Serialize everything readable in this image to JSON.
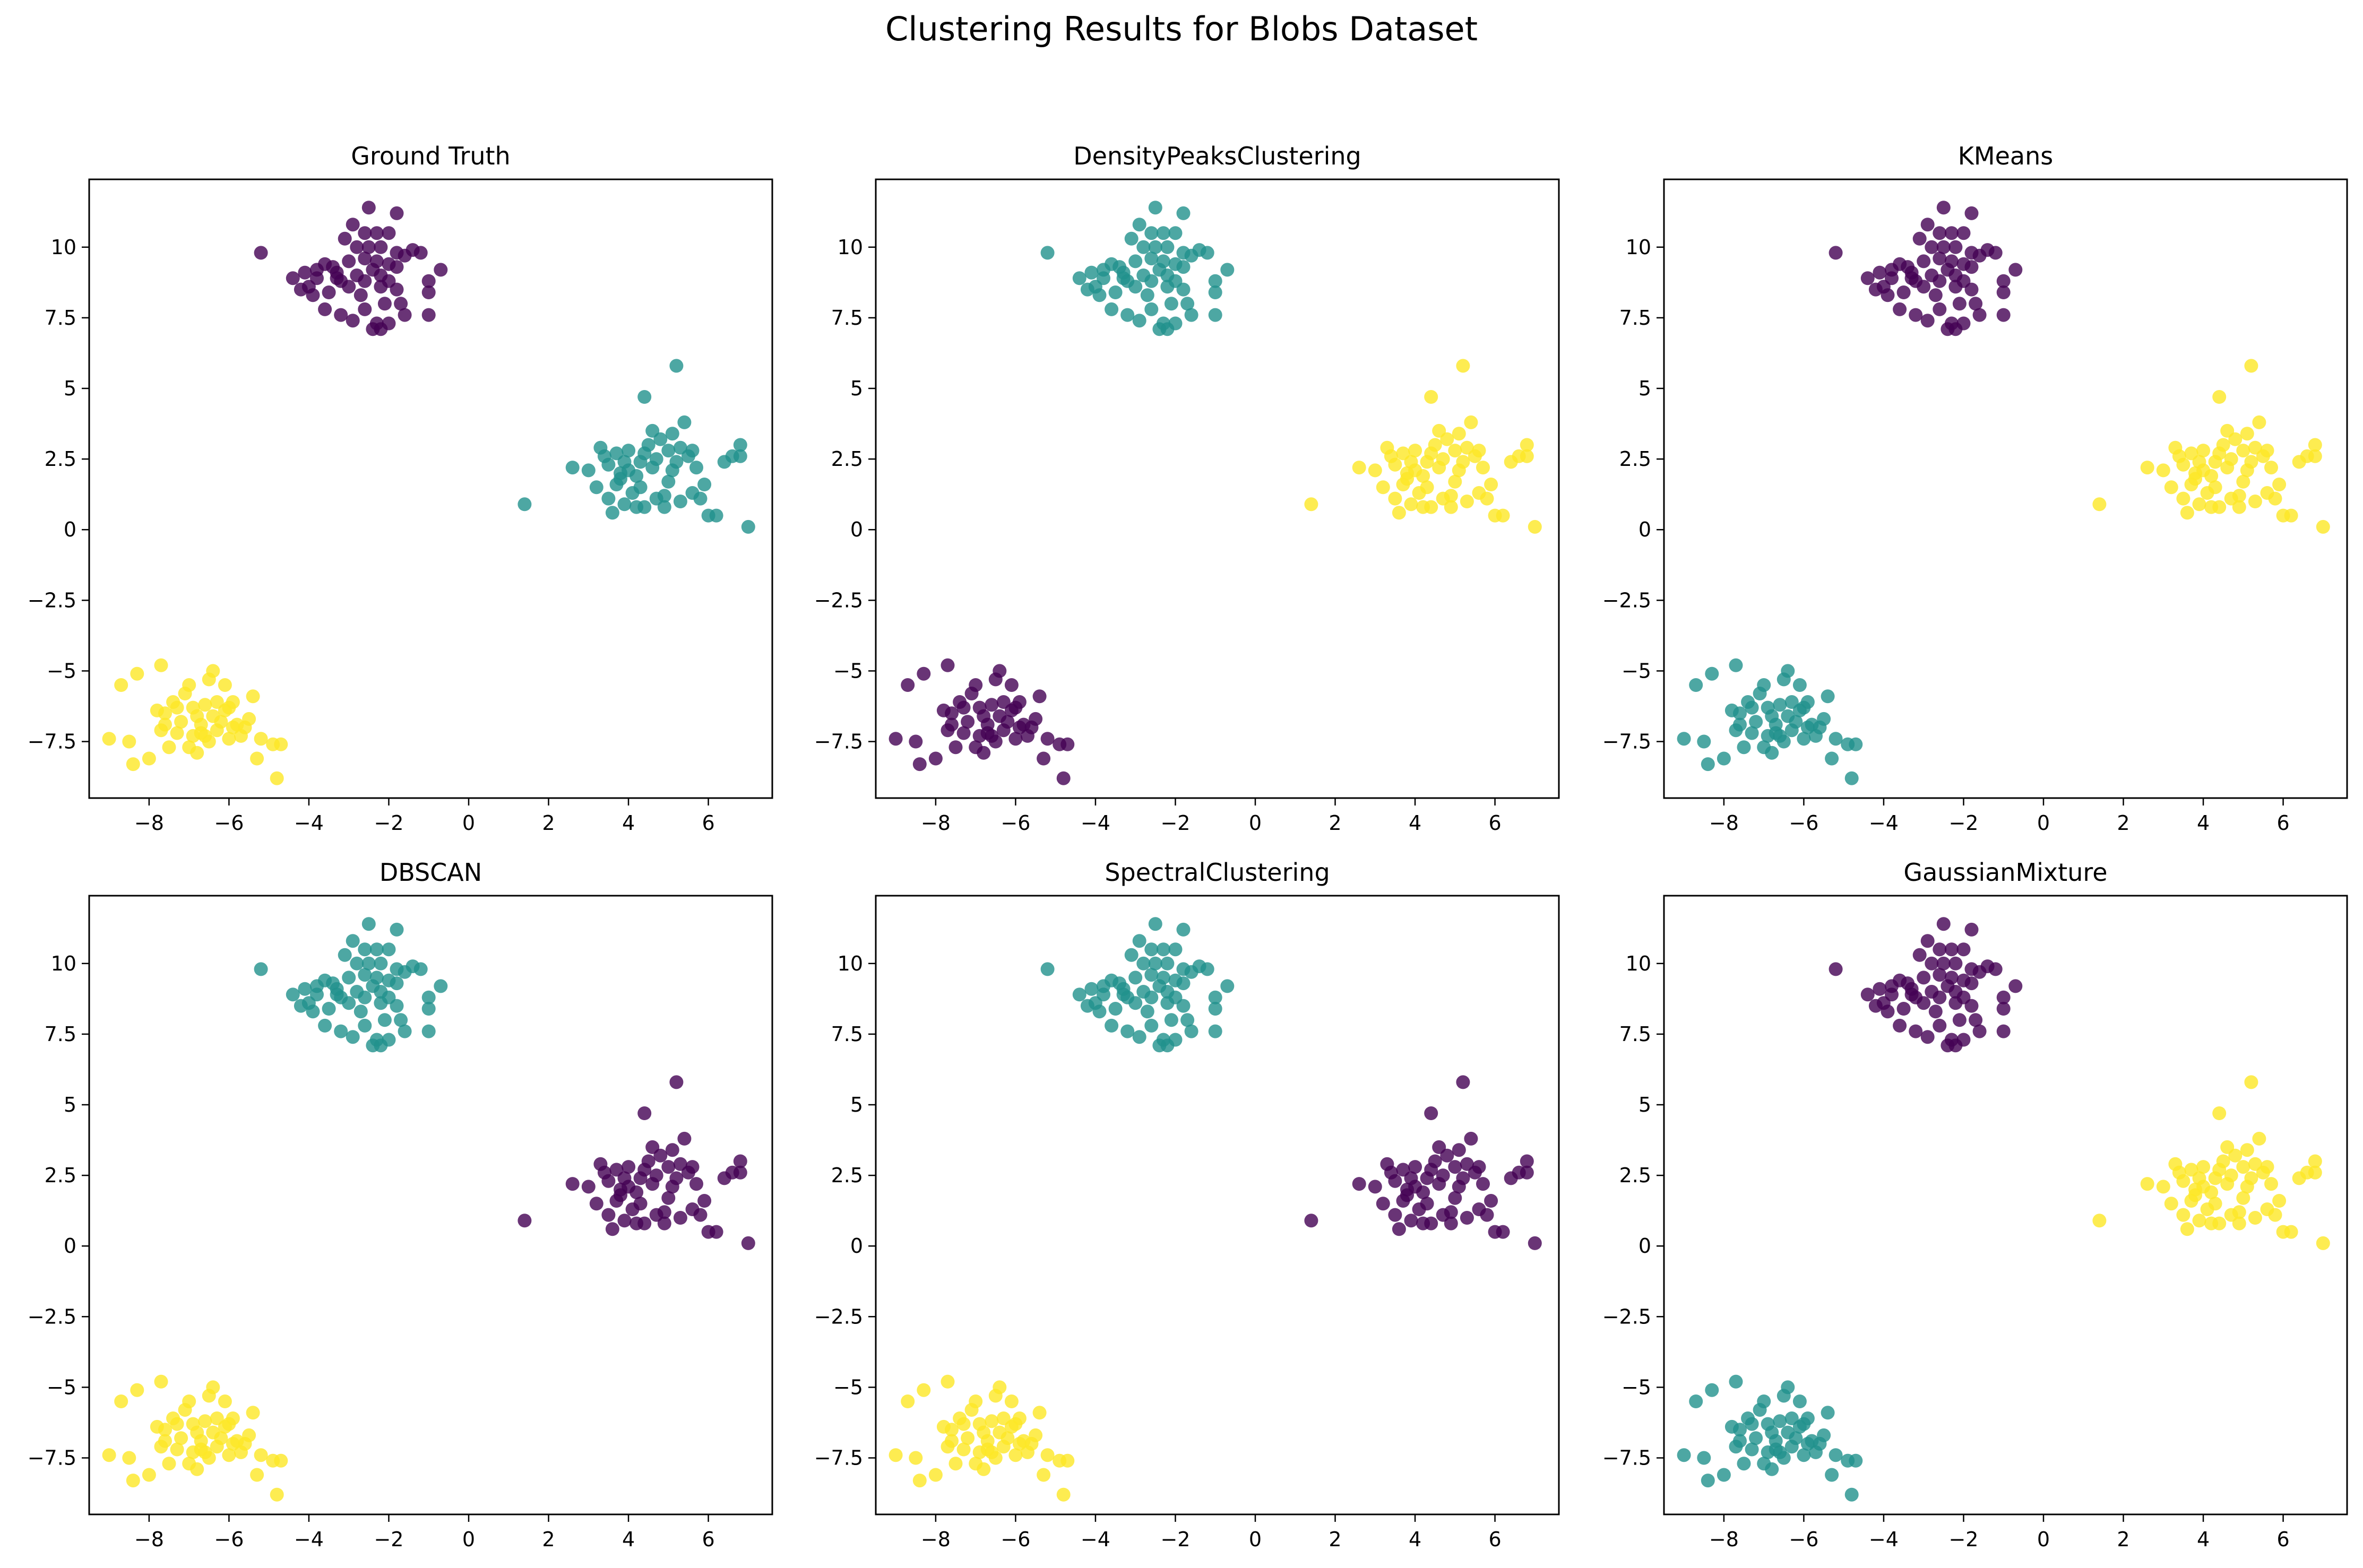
{
  "figure": {
    "title": "Clustering Results for Blobs Dataset"
  },
  "chart_data": [
    {
      "type": "scatter",
      "title": "Ground Truth",
      "xlim": [
        -9.5,
        7.6
      ],
      "ylim": [
        -9.5,
        12.4
      ],
      "xticks": [
        -8,
        -6,
        -4,
        -2,
        0,
        2,
        4,
        6
      ],
      "yticks": [
        -7.5,
        -5.0,
        -2.5,
        0.0,
        2.5,
        5.0,
        7.5,
        10.0
      ],
      "xlabel": "",
      "ylabel": "",
      "grid": false,
      "cluster_colors": {
        "top": "#440154",
        "right": "#21918c",
        "bottom": "#fde725"
      }
    },
    {
      "type": "scatter",
      "title": "DensityPeaksClustering",
      "xlim": [
        -9.5,
        7.6
      ],
      "ylim": [
        -9.5,
        12.4
      ],
      "xticks": [
        -8,
        -6,
        -4,
        -2,
        0,
        2,
        4,
        6
      ],
      "yticks": [
        -7.5,
        -5.0,
        -2.5,
        0.0,
        2.5,
        5.0,
        7.5,
        10.0
      ],
      "xlabel": "",
      "ylabel": "",
      "grid": false,
      "cluster_colors": {
        "top": "#21918c",
        "right": "#fde725",
        "bottom": "#440154"
      }
    },
    {
      "type": "scatter",
      "title": "KMeans",
      "xlim": [
        -9.5,
        7.6
      ],
      "ylim": [
        -9.5,
        12.4
      ],
      "xticks": [
        -8,
        -6,
        -4,
        -2,
        0,
        2,
        4,
        6
      ],
      "yticks": [
        -7.5,
        -5.0,
        -2.5,
        0.0,
        2.5,
        5.0,
        7.5,
        10.0
      ],
      "xlabel": "",
      "ylabel": "",
      "grid": false,
      "cluster_colors": {
        "top": "#440154",
        "right": "#fde725",
        "bottom": "#21918c"
      }
    },
    {
      "type": "scatter",
      "title": "DBSCAN",
      "xlim": [
        -9.5,
        7.6
      ],
      "ylim": [
        -9.5,
        12.4
      ],
      "xticks": [
        -8,
        -6,
        -4,
        -2,
        0,
        2,
        4,
        6
      ],
      "yticks": [
        -7.5,
        -5.0,
        -2.5,
        0.0,
        2.5,
        5.0,
        7.5,
        10.0
      ],
      "xlabel": "",
      "ylabel": "",
      "grid": false,
      "cluster_colors": {
        "top": "#21918c",
        "right": "#440154",
        "bottom": "#fde725"
      }
    },
    {
      "type": "scatter",
      "title": "SpectralClustering",
      "xlim": [
        -9.5,
        7.6
      ],
      "ylim": [
        -9.5,
        12.4
      ],
      "xticks": [
        -8,
        -6,
        -4,
        -2,
        0,
        2,
        4,
        6
      ],
      "yticks": [
        -7.5,
        -5.0,
        -2.5,
        0.0,
        2.5,
        5.0,
        7.5,
        10.0
      ],
      "xlabel": "",
      "ylabel": "",
      "grid": false,
      "cluster_colors": {
        "top": "#21918c",
        "right": "#440154",
        "bottom": "#fde725"
      }
    },
    {
      "type": "scatter",
      "title": "GaussianMixture",
      "xlim": [
        -9.5,
        7.6
      ],
      "ylim": [
        -9.5,
        12.4
      ],
      "xticks": [
        -8,
        -6,
        -4,
        -2,
        0,
        2,
        4,
        6
      ],
      "yticks": [
        -7.5,
        -5.0,
        -2.5,
        0.0,
        2.5,
        5.0,
        7.5,
        10.0
      ],
      "xlabel": "",
      "ylabel": "",
      "grid": false,
      "cluster_colors": {
        "top": "#440154",
        "right": "#fde725",
        "bottom": "#21918c"
      }
    }
  ],
  "points": {
    "top": [
      [
        -5.2,
        9.8
      ],
      [
        -4.4,
        8.9
      ],
      [
        -4.1,
        9.1
      ],
      [
        -3.8,
        9.2
      ],
      [
        -3.6,
        9.4
      ],
      [
        -3.4,
        9.3
      ],
      [
        -4.2,
        8.5
      ],
      [
        -3.9,
        8.3
      ],
      [
        -3.5,
        8.4
      ],
      [
        -3.2,
        8.8
      ],
      [
        -3.0,
        8.6
      ],
      [
        -2.8,
        9.0
      ],
      [
        -2.6,
        8.8
      ],
      [
        -2.4,
        9.2
      ],
      [
        -2.2,
        9.0
      ],
      [
        -2.0,
        9.4
      ],
      [
        -1.8,
        9.3
      ],
      [
        -1.6,
        9.7
      ],
      [
        -1.4,
        9.9
      ],
      [
        -1.2,
        9.8
      ],
      [
        -0.7,
        9.2
      ],
      [
        -1.0,
        8.8
      ],
      [
        -1.0,
        8.4
      ],
      [
        -1.0,
        7.6
      ],
      [
        -1.6,
        7.6
      ],
      [
        -1.7,
        8.0
      ],
      [
        -2.0,
        7.3
      ],
      [
        -2.2,
        7.1
      ],
      [
        -2.3,
        7.3
      ],
      [
        -2.4,
        7.1
      ],
      [
        -2.6,
        7.8
      ],
      [
        -2.9,
        7.4
      ],
      [
        -3.2,
        7.6
      ],
      [
        -3.6,
        7.8
      ],
      [
        -4.0,
        8.6
      ],
      [
        -3.8,
        8.9
      ],
      [
        -3.3,
        9.1
      ],
      [
        -3.1,
        10.3
      ],
      [
        -2.9,
        10.8
      ],
      [
        -2.6,
        10.5
      ],
      [
        -2.3,
        10.5
      ],
      [
        -2.5,
        11.4
      ],
      [
        -2.0,
        10.5
      ],
      [
        -1.8,
        11.2
      ],
      [
        -2.8,
        10.0
      ],
      [
        -2.5,
        10.0
      ],
      [
        -2.3,
        9.5
      ],
      [
        -2.6,
        9.6
      ],
      [
        -3.0,
        9.5
      ],
      [
        -2.0,
        8.8
      ],
      [
        -1.8,
        8.5
      ],
      [
        -2.2,
        8.6
      ],
      [
        -2.7,
        8.3
      ],
      [
        -2.1,
        8.0
      ],
      [
        -3.3,
        8.9
      ],
      [
        -2.2,
        10.0
      ],
      [
        -1.8,
        9.8
      ]
    ],
    "right": [
      [
        1.4,
        0.9
      ],
      [
        2.6,
        2.2
      ],
      [
        3.0,
        2.1
      ],
      [
        3.3,
        2.9
      ],
      [
        3.4,
        2.6
      ],
      [
        3.5,
        2.3
      ],
      [
        3.2,
        1.5
      ],
      [
        3.5,
        1.1
      ],
      [
        3.7,
        1.6
      ],
      [
        3.8,
        2.0
      ],
      [
        3.9,
        2.4
      ],
      [
        4.0,
        2.8
      ],
      [
        3.6,
        0.6
      ],
      [
        3.9,
        0.9
      ],
      [
        4.1,
        1.3
      ],
      [
        4.2,
        1.9
      ],
      [
        4.3,
        2.4
      ],
      [
        4.4,
        2.7
      ],
      [
        4.5,
        3.0
      ],
      [
        4.6,
        2.2
      ],
      [
        4.7,
        1.1
      ],
      [
        4.4,
        0.8
      ],
      [
        4.9,
        1.2
      ],
      [
        5.0,
        1.7
      ],
      [
        5.1,
        2.1
      ],
      [
        5.2,
        2.4
      ],
      [
        5.3,
        2.9
      ],
      [
        5.1,
        3.4
      ],
      [
        4.8,
        3.2
      ],
      [
        4.6,
        3.5
      ],
      [
        4.9,
        0.8
      ],
      [
        5.3,
        1.0
      ],
      [
        5.6,
        1.3
      ],
      [
        5.5,
        2.6
      ],
      [
        5.7,
        2.2
      ],
      [
        5.9,
        1.6
      ],
      [
        6.0,
        0.5
      ],
      [
        6.2,
        0.5
      ],
      [
        6.4,
        2.4
      ],
      [
        6.6,
        2.6
      ],
      [
        6.8,
        2.6
      ],
      [
        6.8,
        3.0
      ],
      [
        7.0,
        0.1
      ],
      [
        5.4,
        3.8
      ],
      [
        4.4,
        4.7
      ],
      [
        5.2,
        5.8
      ],
      [
        4.2,
        0.8
      ],
      [
        3.8,
        1.8
      ],
      [
        5.8,
        1.1
      ],
      [
        4.0,
        2.1
      ],
      [
        4.7,
        2.5
      ],
      [
        5.0,
        2.8
      ],
      [
        3.7,
        2.7
      ],
      [
        4.3,
        1.5
      ],
      [
        5.6,
        2.8
      ]
    ],
    "bottom": [
      [
        -9.0,
        -7.4
      ],
      [
        -8.7,
        -5.5
      ],
      [
        -8.5,
        -7.5
      ],
      [
        -8.4,
        -8.3
      ],
      [
        -8.3,
        -5.1
      ],
      [
        -8.0,
        -8.1
      ],
      [
        -7.8,
        -6.4
      ],
      [
        -7.7,
        -4.8
      ],
      [
        -7.7,
        -7.1
      ],
      [
        -7.6,
        -6.5
      ],
      [
        -7.5,
        -7.7
      ],
      [
        -7.4,
        -6.1
      ],
      [
        -7.3,
        -6.3
      ],
      [
        -7.2,
        -6.8
      ],
      [
        -7.1,
        -5.8
      ],
      [
        -7.0,
        -5.5
      ],
      [
        -6.9,
        -7.3
      ],
      [
        -6.8,
        -6.6
      ],
      [
        -6.8,
        -7.9
      ],
      [
        -6.7,
        -6.9
      ],
      [
        -6.6,
        -6.2
      ],
      [
        -6.5,
        -7.5
      ],
      [
        -6.5,
        -5.3
      ],
      [
        -6.4,
        -5.0
      ],
      [
        -6.3,
        -7.1
      ],
      [
        -6.2,
        -6.8
      ],
      [
        -6.1,
        -5.5
      ],
      [
        -6.1,
        -6.4
      ],
      [
        -6.0,
        -7.4
      ],
      [
        -5.9,
        -6.1
      ],
      [
        -5.8,
        -6.9
      ],
      [
        -5.7,
        -7.3
      ],
      [
        -5.6,
        -7.0
      ],
      [
        -5.5,
        -6.7
      ],
      [
        -5.4,
        -5.9
      ],
      [
        -5.3,
        -8.1
      ],
      [
        -5.2,
        -7.4
      ],
      [
        -4.9,
        -7.6
      ],
      [
        -4.8,
        -8.8
      ],
      [
        -4.7,
        -7.6
      ],
      [
        -7.0,
        -7.7
      ],
      [
        -6.6,
        -7.3
      ],
      [
        -6.3,
        -6.1
      ],
      [
        -6.9,
        -6.3
      ],
      [
        -7.3,
        -7.2
      ],
      [
        -6.0,
        -6.3
      ],
      [
        -5.9,
        -7.0
      ],
      [
        -6.4,
        -6.6
      ],
      [
        -6.7,
        -7.2
      ],
      [
        -7.6,
        -6.9
      ]
    ]
  }
}
